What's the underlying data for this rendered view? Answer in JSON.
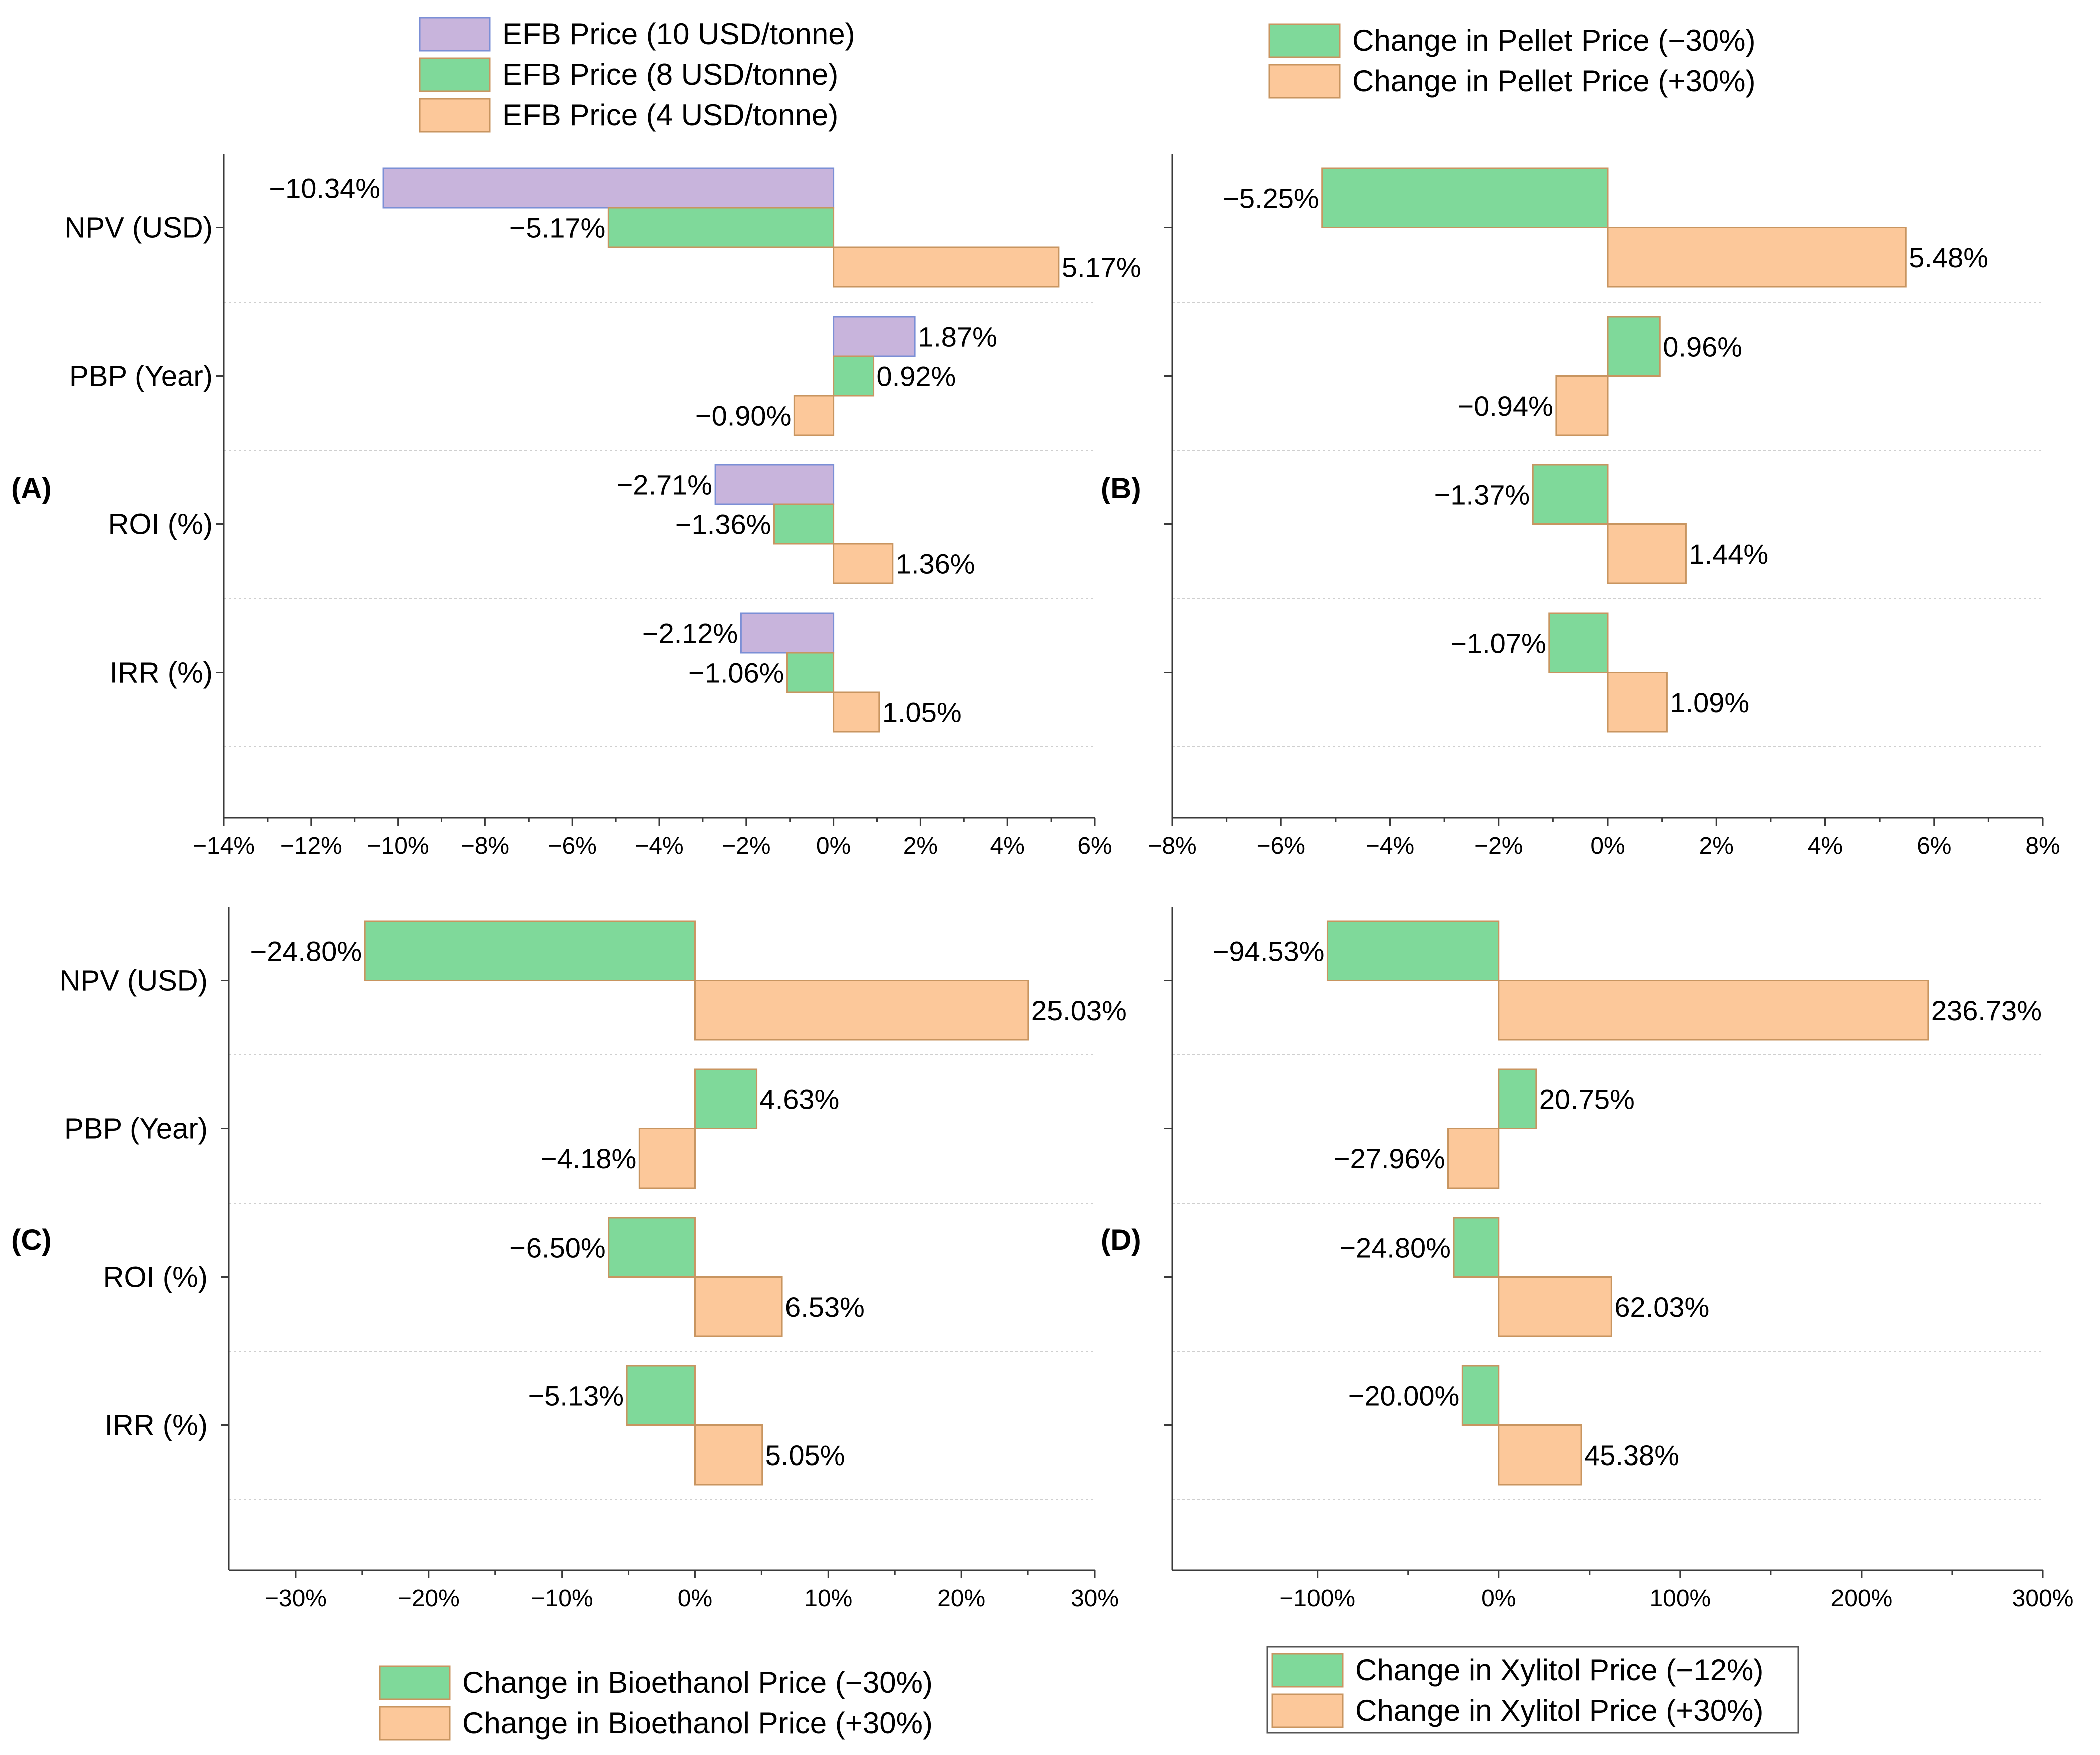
{
  "colors": {
    "violet": "#c8b4dc",
    "violet_edge": "#7b8fd6",
    "green": "#7fd99a",
    "orange": "#fcc89a",
    "bar_edge": "#c89560"
  },
  "chart_data": [
    {
      "type": "bar",
      "orientation": "horizontal",
      "panel": "(A)",
      "categories": [
        "NPV (USD)",
        "PBP (Year)",
        "ROI (%)",
        "IRR (%)"
      ],
      "xlim": [
        -14,
        6
      ],
      "xstep": 2,
      "tick_suffix": "%",
      "series": [
        {
          "name": "EFB Price (10 USD/tonne)",
          "color": "#c8b4dc",
          "edge": "#7b8fd6",
          "values": [
            -10.34,
            1.87,
            -2.71,
            -2.12
          ],
          "labels": [
            "−10.34%",
            "1.87%",
            "−2.71%",
            "−2.12%"
          ]
        },
        {
          "name": "EFB Price (8 USD/tonne)",
          "color": "#7fd99a",
          "edge": "#c89560",
          "values": [
            -5.17,
            0.92,
            -1.36,
            -1.06
          ],
          "labels": [
            "−5.17%",
            "0.92%",
            "−1.36%",
            "−1.06%"
          ]
        },
        {
          "name": "EFB Price (4 USD/tonne)",
          "color": "#fcc89a",
          "edge": "#c89560",
          "values": [
            5.17,
            -0.9,
            1.36,
            1.05
          ],
          "labels": [
            "5.17%",
            "−0.90%",
            "1.36%",
            "1.05%"
          ]
        }
      ],
      "legend": "top"
    },
    {
      "type": "bar",
      "orientation": "horizontal",
      "panel": "(B)",
      "categories": [
        "NPV (USD)",
        "PBP (Year)",
        "ROI (%)",
        "IRR (%)"
      ],
      "xlim": [
        -8,
        8
      ],
      "xstep": 2,
      "tick_suffix": "%",
      "series": [
        {
          "name": "Change in Pellet Price (−30%)",
          "color": "#7fd99a",
          "edge": "#c89560",
          "values": [
            -5.25,
            0.96,
            -1.37,
            -1.07
          ],
          "labels": [
            "−5.25%",
            "0.96%",
            "−1.37%",
            "−1.07%"
          ]
        },
        {
          "name": "Change in Pellet Price (+30%)",
          "color": "#fcc89a",
          "edge": "#c89560",
          "values": [
            5.48,
            -0.94,
            1.44,
            1.09
          ],
          "labels": [
            "5.48%",
            "−0.94%",
            "1.44%",
            "1.09%"
          ]
        }
      ],
      "legend": "top"
    },
    {
      "type": "bar",
      "orientation": "horizontal",
      "panel": "(C)",
      "categories": [
        "NPV (USD)",
        "PBP (Year)",
        "ROI (%)",
        "IRR (%)"
      ],
      "xlim": [
        -35,
        30
      ],
      "xticks": [
        -30,
        -20,
        -10,
        0,
        10,
        20,
        30
      ],
      "tick_suffix": "%",
      "series": [
        {
          "name": "Change in Bioethanol Price (−30%)",
          "color": "#7fd99a",
          "edge": "#c89560",
          "values": [
            -24.8,
            4.63,
            -6.5,
            -5.13
          ],
          "labels": [
            "−24.80%",
            "4.63%",
            "−6.50%",
            "−5.13%"
          ]
        },
        {
          "name": "Change in Bioethanol Price (+30%)",
          "color": "#fcc89a",
          "edge": "#c89560",
          "values": [
            25.03,
            -4.18,
            6.53,
            5.05
          ],
          "labels": [
            "25.03%",
            "−4.18%",
            "6.53%",
            "5.05%"
          ]
        }
      ],
      "legend": "bottom"
    },
    {
      "type": "bar",
      "orientation": "horizontal",
      "panel": "(D)",
      "categories": [
        "NPV (USD)",
        "PBP (Year)",
        "ROI (%)",
        "IRR (%)"
      ],
      "xlim": [
        -180,
        300
      ],
      "xticks": [
        -100,
        0,
        100,
        200,
        300
      ],
      "tick_suffix": "%",
      "series": [
        {
          "name": "Change in Xylitol Price (−12%)",
          "color": "#7fd99a",
          "edge": "#c89560",
          "values": [
            -94.53,
            20.75,
            -24.8,
            -20.0
          ],
          "labels": [
            "−94.53%",
            "20.75%",
            "−24.80%",
            "−20.00%"
          ]
        },
        {
          "name": "Change in Xylitol Price (+30%)",
          "color": "#fcc89a",
          "edge": "#c89560",
          "values": [
            236.73,
            -27.96,
            62.03,
            45.38
          ],
          "labels": [
            "236.73%",
            "−27.96%",
            "62.03%",
            "45.38%"
          ]
        }
      ],
      "legend": "bottom"
    }
  ]
}
